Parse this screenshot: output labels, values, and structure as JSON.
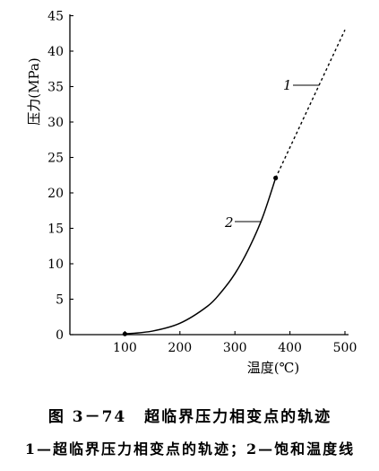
{
  "chart_data": {
    "type": "line",
    "figure_number": "图 3－74",
    "title": "超临界压力相变点的轨迹",
    "xlabel": "温度(℃)",
    "ylabel": "压力(MPa)",
    "xlim": [
      0,
      500
    ],
    "ylim": [
      0,
      45
    ],
    "xticks": [
      100,
      200,
      300,
      400,
      500
    ],
    "yticks": [
      0,
      5,
      10,
      15,
      20,
      25,
      30,
      35,
      40,
      45
    ],
    "grid": false,
    "legend": {
      "placement": "below",
      "separator": "—",
      "delimiter": "；"
    },
    "series": [
      {
        "label": "1",
        "name": "超临界压力相变点的轨迹",
        "line_style": "dashed",
        "color": "#000000",
        "x": [
          374,
          500
        ],
        "y": [
          22.1,
          43.0
        ]
      },
      {
        "label": "2",
        "name": "饱和温度线",
        "line_style": "solid",
        "color": "#000000",
        "x": [
          100,
          150,
          200,
          250,
          275,
          300,
          325,
          350,
          374
        ],
        "y": [
          0.1,
          0.5,
          1.6,
          4.0,
          6.0,
          8.6,
          12.1,
          16.5,
          22.1
        ]
      }
    ],
    "markers": [
      {
        "x": 100,
        "y": 0.1
      },
      {
        "x": 374,
        "y": 22.1
      }
    ]
  }
}
